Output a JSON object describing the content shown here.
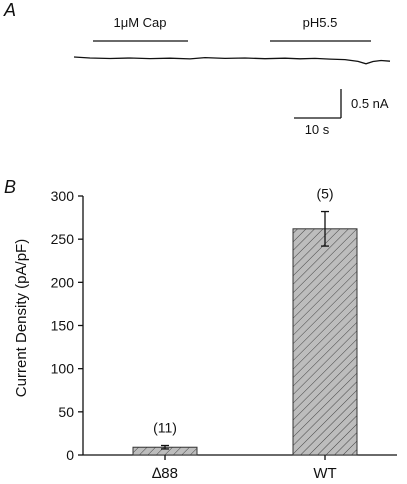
{
  "panel_a": {
    "letter": "A",
    "stimulus_1": "1μM Cap",
    "stimulus_2": "pH5.5",
    "scale_current": "0.5 nA",
    "scale_time": "10 s"
  },
  "panel_b": {
    "letter": "B"
  },
  "chart_data": {
    "type": "bar",
    "title": "",
    "xlabel": "",
    "ylabel": "Current Density (pA/pF)",
    "ylim": [
      0,
      300
    ],
    "yticks": [
      0,
      50,
      100,
      150,
      200,
      250,
      300
    ],
    "categories": [
      "∆88",
      "WT"
    ],
    "values": [
      9,
      262
    ],
    "errors": [
      2,
      20
    ],
    "n_labels": [
      "(11)",
      "(5)"
    ],
    "bar_fill": "#bdbdbd",
    "hatch": "diagonal",
    "grid": false,
    "legend": "none"
  }
}
